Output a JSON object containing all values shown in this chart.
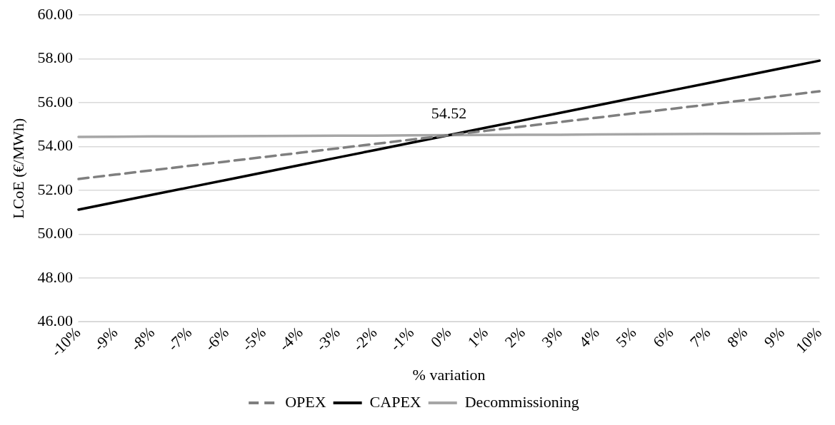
{
  "chart_data": {
    "type": "line",
    "xlabel": "% variation",
    "ylabel": "LCoE (€/MWh)",
    "categories": [
      "-10%",
      "-9%",
      "-8%",
      "-7%",
      "-6%",
      "-5%",
      "-4%",
      "-3%",
      "-2%",
      "-1%",
      "0%",
      "1%",
      "2%",
      "3%",
      "4%",
      "5%",
      "6%",
      "7%",
      "8%",
      "9%",
      "10%"
    ],
    "series": [
      {
        "name": "OPEX",
        "color": "#7f7f7f",
        "line_style": "dashed",
        "values": [
          52.52,
          52.72,
          52.92,
          53.12,
          53.32,
          53.52,
          53.72,
          53.92,
          54.12,
          54.32,
          54.52,
          54.72,
          54.92,
          55.12,
          55.32,
          55.52,
          55.72,
          55.92,
          56.12,
          56.32,
          56.52
        ]
      },
      {
        "name": "CAPEX",
        "color": "#000000",
        "line_style": "solid",
        "values": [
          51.12,
          51.46,
          51.8,
          52.14,
          52.48,
          52.82,
          53.16,
          53.5,
          53.84,
          54.18,
          54.52,
          54.86,
          55.2,
          55.54,
          55.88,
          56.22,
          56.56,
          56.9,
          57.24,
          57.58,
          57.92
        ]
      },
      {
        "name": "Decommissioning",
        "color": "#a6a6a6",
        "line_style": "solid",
        "values": [
          54.44,
          54.45,
          54.46,
          54.46,
          54.47,
          54.48,
          54.49,
          54.5,
          54.5,
          54.51,
          54.52,
          54.53,
          54.54,
          54.54,
          54.55,
          54.56,
          54.57,
          54.58,
          54.58,
          54.59,
          54.6
        ]
      }
    ],
    "ylim": [
      46,
      60
    ],
    "yticks": [
      {
        "value": 46,
        "label": "46.00"
      },
      {
        "value": 48,
        "label": "48.00"
      },
      {
        "value": 50,
        "label": "50.00"
      },
      {
        "value": 52,
        "label": "52.00"
      },
      {
        "value": 54,
        "label": "54.00"
      },
      {
        "value": 56,
        "label": "56.00"
      },
      {
        "value": 58,
        "label": "58.00"
      },
      {
        "value": 60,
        "label": "60.00"
      }
    ],
    "grid": "y",
    "legend": "bottom",
    "marker": "none",
    "annotations": [
      {
        "text": "54.52",
        "x": "0%",
        "y": 54.52
      }
    ]
  }
}
